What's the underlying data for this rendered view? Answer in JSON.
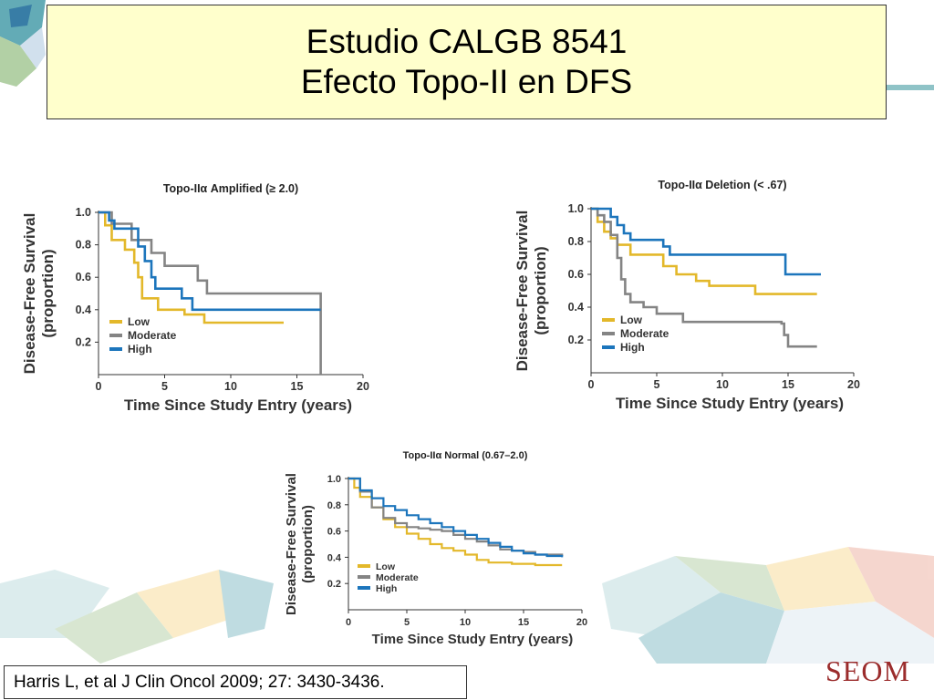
{
  "slide": {
    "title_line1": "Estudio CALGB 8541",
    "title_line2": "Efecto Topo-II en DFS",
    "citation": "Harris L, et al J Clin Oncol 2009; 27: 3430-3436.",
    "logo_text": "SEOM",
    "colors": {
      "title_bg": "#ffffcc",
      "low": "#e3b82a",
      "moderate": "#848484",
      "high": "#1c75bc",
      "logo": "#9b2c2c"
    }
  },
  "chart_data": [
    {
      "type": "line",
      "title": "Topo-IIα Amplified (≥ 2.0)",
      "xlabel": "Time Since Study Entry (years)",
      "ylabel": "Disease-Free Survival",
      "ylabel2": "(proportion)",
      "x_ticks": [
        "0",
        "5",
        "10",
        "15",
        "20"
      ],
      "y_ticks": [
        "1.0",
        "0.8",
        "0.6",
        "0.4",
        "0.2"
      ],
      "xlim": [
        0,
        20
      ],
      "ylim": [
        0,
        1
      ],
      "legend_position": "bottom-left",
      "series": [
        {
          "name": "Low",
          "color": "#e3b82a",
          "points": [
            [
              0,
              1
            ],
            [
              0.5,
              0.92
            ],
            [
              1,
              0.83
            ],
            [
              2,
              0.77
            ],
            [
              2.7,
              0.69
            ],
            [
              3,
              0.6
            ],
            [
              3.3,
              0.47
            ],
            [
              4.5,
              0.4
            ],
            [
              6.5,
              0.37
            ],
            [
              8,
              0.32
            ],
            [
              14,
              0.32
            ]
          ]
        },
        {
          "name": "Moderate",
          "color": "#848484",
          "points": [
            [
              0,
              1
            ],
            [
              1,
              0.93
            ],
            [
              2.5,
              0.83
            ],
            [
              4,
              0.75
            ],
            [
              5,
              0.67
            ],
            [
              7.5,
              0.58
            ],
            [
              8.2,
              0.5
            ],
            [
              16.8,
              0.5
            ],
            [
              16.8,
              0
            ]
          ]
        },
        {
          "name": "High",
          "color": "#1c75bc",
          "points": [
            [
              0,
              1
            ],
            [
              0.8,
              0.95
            ],
            [
              1.2,
              0.9
            ],
            [
              3,
              0.79
            ],
            [
              3.5,
              0.7
            ],
            [
              4,
              0.6
            ],
            [
              4.3,
              0.53
            ],
            [
              6.3,
              0.47
            ],
            [
              7.1,
              0.4
            ],
            [
              16.8,
              0.4
            ]
          ]
        }
      ]
    },
    {
      "type": "line",
      "title": "Topo-IIα Deletion (< .67)",
      "xlabel": "Time Since Study Entry (years)",
      "ylabel": "Disease-Free Survival",
      "ylabel2": "(proportion)",
      "x_ticks": [
        "0",
        "5",
        "10",
        "15",
        "20"
      ],
      "y_ticks": [
        "1.0",
        "0.8",
        "0.6",
        "0.4",
        "0.2"
      ],
      "xlim": [
        0,
        20
      ],
      "ylim": [
        0,
        1
      ],
      "legend_position": "bottom-left",
      "series": [
        {
          "name": "Low",
          "color": "#e3b82a",
          "points": [
            [
              0,
              1
            ],
            [
              0.5,
              0.92
            ],
            [
              1,
              0.86
            ],
            [
              1.5,
              0.82
            ],
            [
              2,
              0.78
            ],
            [
              3,
              0.72
            ],
            [
              5.5,
              0.65
            ],
            [
              6.5,
              0.6
            ],
            [
              8,
              0.56
            ],
            [
              9,
              0.53
            ],
            [
              12.5,
              0.48
            ],
            [
              17.2,
              0.48
            ]
          ]
        },
        {
          "name": "Moderate",
          "color": "#848484",
          "points": [
            [
              0,
              1
            ],
            [
              0.5,
              0.96
            ],
            [
              1,
              0.92
            ],
            [
              1.5,
              0.84
            ],
            [
              2,
              0.7
            ],
            [
              2.3,
              0.57
            ],
            [
              2.6,
              0.48
            ],
            [
              3,
              0.43
            ],
            [
              4,
              0.4
            ],
            [
              5,
              0.36
            ],
            [
              7,
              0.31
            ],
            [
              14.5,
              0.3
            ],
            [
              14.7,
              0.23
            ],
            [
              15,
              0.16
            ],
            [
              17.2,
              0.16
            ]
          ]
        },
        {
          "name": "High",
          "color": "#1c75bc",
          "points": [
            [
              0,
              1
            ],
            [
              1.5,
              0.95
            ],
            [
              2,
              0.9
            ],
            [
              2.5,
              0.85
            ],
            [
              3,
              0.81
            ],
            [
              5.5,
              0.77
            ],
            [
              6,
              0.72
            ],
            [
              14.5,
              0.72
            ],
            [
              14.8,
              0.6
            ],
            [
              17.5,
              0.6
            ]
          ]
        }
      ]
    },
    {
      "type": "line",
      "title": "Topo-IIα Normal (0.67–2.0)",
      "xlabel": "Time Since Study Entry (years)",
      "ylabel": "Disease-Free Survival",
      "ylabel2": "(proportion)",
      "x_ticks": [
        "0",
        "5",
        "10",
        "15",
        "20"
      ],
      "y_ticks": [
        "1.0",
        "0.8",
        "0.6",
        "0.4",
        "0.2"
      ],
      "xlim": [
        0,
        20
      ],
      "ylim": [
        0,
        1
      ],
      "legend_position": "bottom-left",
      "series": [
        {
          "name": "Low",
          "color": "#e3b82a",
          "points": [
            [
              0,
              1
            ],
            [
              0.5,
              0.93
            ],
            [
              1,
              0.86
            ],
            [
              2,
              0.78
            ],
            [
              3,
              0.69
            ],
            [
              4,
              0.63
            ],
            [
              5,
              0.58
            ],
            [
              6,
              0.54
            ],
            [
              7,
              0.5
            ],
            [
              8,
              0.47
            ],
            [
              9,
              0.45
            ],
            [
              10,
              0.42
            ],
            [
              11,
              0.38
            ],
            [
              12,
              0.36
            ],
            [
              14,
              0.35
            ],
            [
              16,
              0.34
            ],
            [
              18.3,
              0.34
            ]
          ]
        },
        {
          "name": "Moderate",
          "color": "#848484",
          "points": [
            [
              0,
              1
            ],
            [
              1,
              0.9
            ],
            [
              2,
              0.78
            ],
            [
              3,
              0.7
            ],
            [
              4,
              0.66
            ],
            [
              5,
              0.63
            ],
            [
              6,
              0.62
            ],
            [
              7,
              0.61
            ],
            [
              8,
              0.6
            ],
            [
              9,
              0.57
            ],
            [
              10,
              0.54
            ],
            [
              11,
              0.52
            ],
            [
              12,
              0.49
            ],
            [
              13,
              0.46
            ],
            [
              14,
              0.45
            ],
            [
              15,
              0.44
            ],
            [
              16,
              0.42
            ],
            [
              17,
              0.42
            ],
            [
              18.3,
              0.41
            ]
          ]
        },
        {
          "name": "High",
          "color": "#1c75bc",
          "points": [
            [
              0,
              1
            ],
            [
              1,
              0.91
            ],
            [
              2,
              0.85
            ],
            [
              3,
              0.79
            ],
            [
              4,
              0.76
            ],
            [
              5,
              0.72
            ],
            [
              6,
              0.69
            ],
            [
              7,
              0.66
            ],
            [
              8,
              0.63
            ],
            [
              9,
              0.6
            ],
            [
              10,
              0.57
            ],
            [
              11,
              0.54
            ],
            [
              12,
              0.51
            ],
            [
              13,
              0.48
            ],
            [
              14,
              0.45
            ],
            [
              15,
              0.43
            ],
            [
              16,
              0.42
            ],
            [
              17,
              0.41
            ],
            [
              18.3,
              0.4
            ]
          ]
        }
      ]
    }
  ]
}
